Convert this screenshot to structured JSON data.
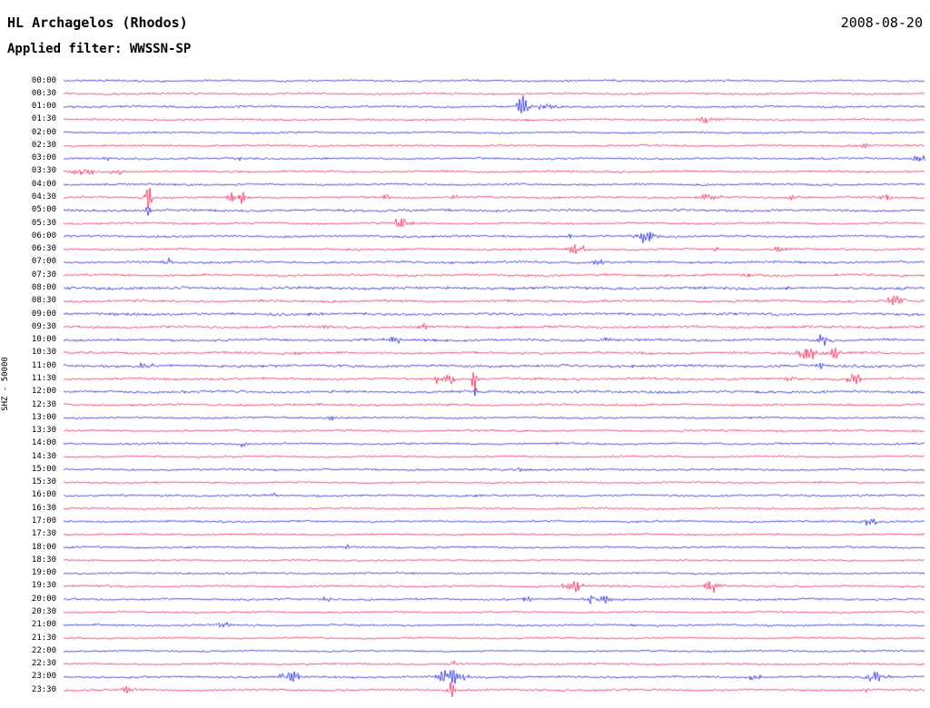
{
  "header": {
    "station": "HL Archagelos (Rhodos)",
    "date": "2008-08-20",
    "filter_label": "Applied filter: WWSSN-SP"
  },
  "side_label": "SHZ - 50000",
  "colors": {
    "blue": "#0000cd",
    "red": "#e8003a",
    "background": "#ffffff",
    "text": "#000000"
  },
  "chart_data": {
    "type": "line",
    "title": "Helicorder seismogram, 24 hours, 30 minutes per trace row",
    "minutes_per_row": 30,
    "event_format": [
      "x_fraction_of_row",
      "amplitude_px",
      "gaussian_sigma_px"
    ],
    "rows": [
      {
        "label": "00:00",
        "color": "blue",
        "noise": 0.95,
        "events": []
      },
      {
        "label": "00:30",
        "color": "red",
        "noise": 0.95,
        "events": []
      },
      {
        "label": "01:00",
        "color": "blue",
        "noise": 1.0,
        "events": [
          [
            0.533,
            11,
            4
          ],
          [
            0.56,
            2,
            12
          ]
        ]
      },
      {
        "label": "01:30",
        "color": "red",
        "noise": 0.95,
        "events": [
          [
            0.747,
            3.5,
            8
          ]
        ]
      },
      {
        "label": "02:00",
        "color": "blue",
        "noise": 0.9,
        "events": []
      },
      {
        "label": "02:30",
        "color": "red",
        "noise": 0.9,
        "events": [
          [
            0.931,
            2.2,
            4
          ]
        ]
      },
      {
        "label": "03:00",
        "color": "blue",
        "noise": 1.0,
        "events": [
          [
            0.051,
            2.5,
            4
          ],
          [
            0.203,
            2,
            4
          ],
          [
            0.995,
            5,
            5
          ]
        ]
      },
      {
        "label": "03:30",
        "color": "red",
        "noise": 1.0,
        "events": [
          [
            0.021,
            3,
            10
          ],
          [
            0.063,
            2.5,
            6
          ]
        ]
      },
      {
        "label": "04:00",
        "color": "blue",
        "noise": 1.0,
        "events": []
      },
      {
        "label": "04:30",
        "color": "red",
        "noise": 1.05,
        "events": [
          [
            0.098,
            13,
            2.5
          ],
          [
            0.198,
            5,
            5
          ],
          [
            0.207,
            4,
            3
          ],
          [
            0.374,
            2.6,
            4
          ],
          [
            0.453,
            2.2,
            4
          ],
          [
            0.749,
            3.5,
            8
          ],
          [
            0.849,
            3,
            5
          ],
          [
            0.955,
            2.6,
            5
          ]
        ]
      },
      {
        "label": "05:00",
        "color": "blue",
        "noise": 1.15,
        "events": [
          [
            0.098,
            3.5,
            3
          ]
        ]
      },
      {
        "label": "05:30",
        "color": "red",
        "noise": 1.0,
        "events": [
          [
            0.393,
            5,
            7
          ]
        ]
      },
      {
        "label": "06:00",
        "color": "blue",
        "noise": 1.0,
        "events": [
          [
            0.589,
            2.2,
            4
          ],
          [
            0.677,
            6,
            8
          ]
        ]
      },
      {
        "label": "06:30",
        "color": "red",
        "noise": 1.0,
        "events": [
          [
            0.598,
            5,
            7
          ],
          [
            0.759,
            2.2,
            4
          ],
          [
            0.833,
            3,
            5
          ]
        ]
      },
      {
        "label": "07:00",
        "color": "blue",
        "noise": 1.15,
        "events": [
          [
            0.121,
            3.5,
            4
          ],
          [
            0.622,
            2.2,
            5
          ]
        ]
      },
      {
        "label": "07:30",
        "color": "red",
        "noise": 1.1,
        "events": [
          [
            0.791,
            2.2,
            4
          ]
        ]
      },
      {
        "label": "08:00",
        "color": "blue",
        "noise": 1.35,
        "events": []
      },
      {
        "label": "08:30",
        "color": "red",
        "noise": 1.15,
        "events": [
          [
            0.968,
            5,
            7
          ]
        ]
      },
      {
        "label": "09:00",
        "color": "blue",
        "noise": 1.3,
        "events": [
          [
            0.063,
            2,
            4
          ]
        ]
      },
      {
        "label": "09:30",
        "color": "red",
        "noise": 1.15,
        "events": [
          [
            0.306,
            2.2,
            4
          ],
          [
            0.417,
            3,
            5
          ]
        ]
      },
      {
        "label": "10:00",
        "color": "blue",
        "noise": 1.25,
        "events": [
          [
            0.385,
            3.5,
            5
          ],
          [
            0.628,
            2.6,
            4
          ],
          [
            0.881,
            8,
            3
          ]
        ]
      },
      {
        "label": "10:30",
        "color": "red",
        "noise": 1.2,
        "events": [
          [
            0.833,
            3,
            4
          ],
          [
            0.865,
            6,
            8
          ],
          [
            0.897,
            4.5,
            5
          ]
        ]
      },
      {
        "label": "11:00",
        "color": "blue",
        "noise": 1.3,
        "events": [
          [
            0.095,
            3.5,
            6
          ],
          [
            0.881,
            2.6,
            4
          ]
        ]
      },
      {
        "label": "11:30",
        "color": "red",
        "noise": 1.2,
        "events": [
          [
            0.432,
            4.5,
            5
          ],
          [
            0.448,
            4.5,
            4
          ],
          [
            0.478,
            11,
            2.5
          ],
          [
            0.844,
            2.6,
            4
          ],
          [
            0.918,
            7,
            5
          ]
        ]
      },
      {
        "label": "12:00",
        "color": "blue",
        "noise": 1.2,
        "events": [
          [
            0.478,
            3.5,
            3
          ]
        ]
      },
      {
        "label": "12:30",
        "color": "red",
        "noise": 1.1,
        "events": []
      },
      {
        "label": "13:00",
        "color": "blue",
        "noise": 0.95,
        "events": [
          [
            0.311,
            2.2,
            4
          ]
        ]
      },
      {
        "label": "13:30",
        "color": "red",
        "noise": 1.0,
        "events": []
      },
      {
        "label": "14:00",
        "color": "blue",
        "noise": 1.0,
        "events": [
          [
            0.21,
            2,
            4
          ]
        ]
      },
      {
        "label": "14:30",
        "color": "red",
        "noise": 0.9,
        "events": []
      },
      {
        "label": "15:00",
        "color": "blue",
        "noise": 1.0,
        "events": [
          [
            0.53,
            2,
            5
          ]
        ]
      },
      {
        "label": "15:30",
        "color": "red",
        "noise": 0.9,
        "events": []
      },
      {
        "label": "16:00",
        "color": "blue",
        "noise": 1.0,
        "events": [
          [
            0.245,
            2.2,
            4
          ]
        ]
      },
      {
        "label": "16:30",
        "color": "red",
        "noise": 0.9,
        "events": []
      },
      {
        "label": "17:00",
        "color": "blue",
        "noise": 1.0,
        "events": [
          [
            0.127,
            2,
            4
          ],
          [
            0.937,
            3,
            8
          ]
        ]
      },
      {
        "label": "17:30",
        "color": "red",
        "noise": 0.9,
        "events": []
      },
      {
        "label": "18:00",
        "color": "blue",
        "noise": 0.9,
        "events": [
          [
            0.33,
            1.8,
            3
          ]
        ]
      },
      {
        "label": "18:30",
        "color": "red",
        "noise": 0.85,
        "events": []
      },
      {
        "label": "19:00",
        "color": "blue",
        "noise": 0.9,
        "events": []
      },
      {
        "label": "19:30",
        "color": "red",
        "noise": 1.0,
        "events": [
          [
            0.591,
            5,
            9
          ],
          [
            0.754,
            6,
            6
          ]
        ]
      },
      {
        "label": "20:00",
        "color": "blue",
        "noise": 1.0,
        "events": [
          [
            0.306,
            2.6,
            4
          ],
          [
            0.538,
            2.6,
            4
          ],
          [
            0.617,
            5,
            7
          ],
          [
            0.631,
            4,
            4
          ]
        ]
      },
      {
        "label": "20:30",
        "color": "red",
        "noise": 0.9,
        "events": []
      },
      {
        "label": "21:00",
        "color": "blue",
        "noise": 0.95,
        "events": [
          [
            0.185,
            3,
            5
          ]
        ]
      },
      {
        "label": "21:30",
        "color": "red",
        "noise": 0.85,
        "events": []
      },
      {
        "label": "22:00",
        "color": "blue",
        "noise": 0.9,
        "events": []
      },
      {
        "label": "22:30",
        "color": "red",
        "noise": 0.9,
        "events": [
          [
            0.454,
            2,
            4
          ]
        ]
      },
      {
        "label": "23:00",
        "color": "blue",
        "noise": 1.0,
        "events": [
          [
            0.264,
            5,
            8
          ],
          [
            0.451,
            8,
            10
          ],
          [
            0.802,
            3.5,
            5
          ],
          [
            0.944,
            5,
            9
          ]
        ]
      },
      {
        "label": "23:30",
        "color": "red",
        "noise": 0.95,
        "events": [
          [
            0.074,
            3.5,
            6
          ],
          [
            0.45,
            9,
            2.5
          ],
          [
            0.93,
            2.6,
            4
          ]
        ]
      }
    ]
  }
}
